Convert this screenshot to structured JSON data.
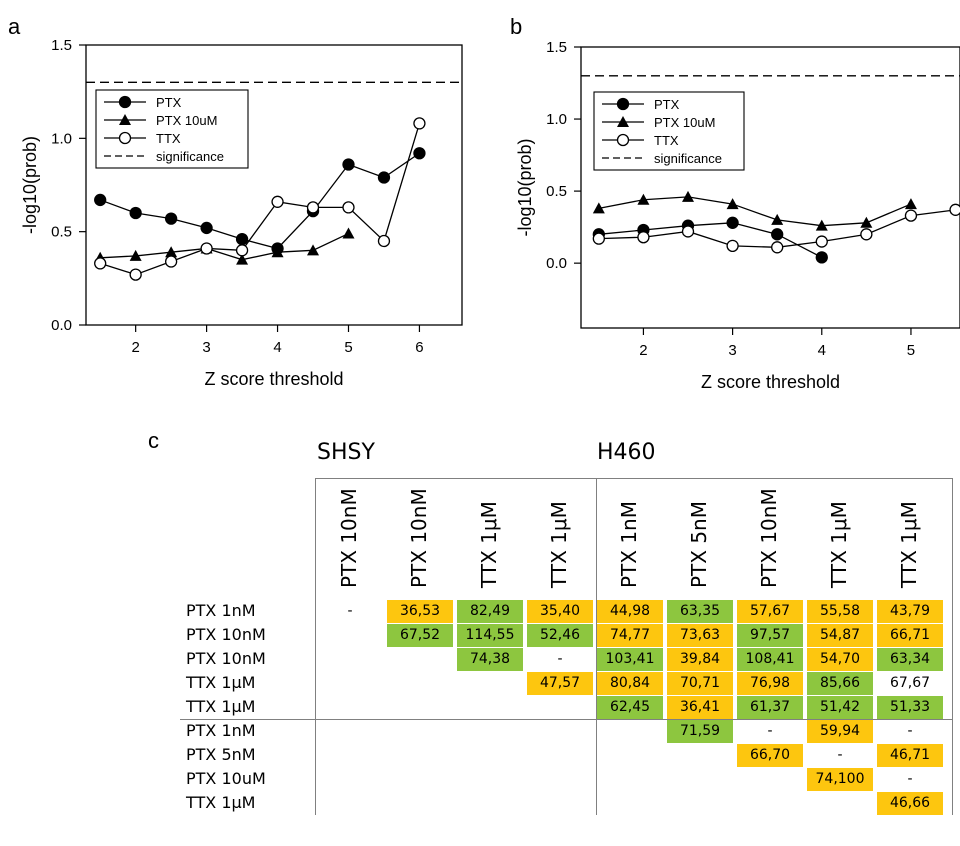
{
  "panel_labels": {
    "a": "a",
    "b": "b",
    "c": "c"
  },
  "colors": {
    "green": "#8dc63f",
    "yellow": "#fdc60f",
    "white": "#ffffff"
  },
  "chart_data": [
    {
      "type": "line",
      "panel": "a",
      "xlabel": "Z score threshold",
      "ylabel": "-log10(prob)",
      "xlim": [
        1.3,
        6.6
      ],
      "ylim": [
        0.0,
        1.5
      ],
      "xticks": [
        2,
        3,
        4,
        5,
        6
      ],
      "yticks": [
        0.0,
        0.5,
        1.0,
        1.5
      ],
      "ytick_labels": [
        "0.0",
        "0.5",
        "1.0",
        "1.5"
      ],
      "significance": 1.3,
      "legend": [
        "PTX",
        "PTX 10uM",
        "TTX",
        "significance"
      ],
      "series": [
        {
          "name": "PTX",
          "marker": "filled-circle",
          "x": [
            1.5,
            2.0,
            2.5,
            3.0,
            3.5,
            4.0,
            4.5,
            5.0,
            5.5,
            6.0
          ],
          "y": [
            0.67,
            0.6,
            0.57,
            0.52,
            0.46,
            0.41,
            0.61,
            0.86,
            0.79,
            0.92
          ]
        },
        {
          "name": "PTX 10uM",
          "marker": "filled-triangle",
          "x": [
            1.5,
            2.0,
            2.5,
            3.0,
            3.5,
            4.0,
            4.5,
            5.0
          ],
          "y": [
            0.36,
            0.37,
            0.39,
            0.41,
            0.35,
            0.39,
            0.4,
            0.49
          ]
        },
        {
          "name": "TTX",
          "marker": "open-circle",
          "x": [
            1.5,
            2.0,
            2.5,
            3.0,
            3.5,
            4.0,
            4.5,
            5.0,
            5.5,
            6.0
          ],
          "y": [
            0.33,
            0.27,
            0.34,
            0.41,
            0.4,
            0.66,
            0.63,
            0.63,
            0.45,
            1.08
          ]
        }
      ]
    },
    {
      "type": "line",
      "panel": "b",
      "xlabel": "Z score threshold",
      "ylabel": "-log10(prob)",
      "xlim": [
        1.3,
        5.55
      ],
      "ylim": [
        -0.45,
        1.5
      ],
      "xticks": [
        2,
        3,
        4,
        5
      ],
      "yticks": [
        0.0,
        0.5,
        1.0,
        1.5
      ],
      "ytick_labels": [
        "0.0",
        "0.5",
        "1.0",
        "1.5"
      ],
      "significance": 1.3,
      "legend": [
        "PTX",
        "PTX 10uM",
        "TTX",
        "significance"
      ],
      "series": [
        {
          "name": "PTX",
          "marker": "filled-circle",
          "x": [
            1.5,
            2.0,
            2.5,
            3.0,
            3.5,
            4.0
          ],
          "y": [
            0.2,
            0.23,
            0.26,
            0.28,
            0.2,
            0.04
          ]
        },
        {
          "name": "PTX 10uM",
          "marker": "filled-triangle",
          "x": [
            1.5,
            2.0,
            2.5,
            3.0,
            3.5,
            4.0,
            4.5,
            5.0
          ],
          "y": [
            0.38,
            0.44,
            0.46,
            0.41,
            0.3,
            0.26,
            0.28,
            0.41
          ]
        },
        {
          "name": "TTX",
          "marker": "open-circle",
          "x": [
            1.5,
            2.0,
            2.5,
            3.0,
            3.5,
            4.0,
            4.5,
            5.0,
            5.5
          ],
          "y": [
            0.17,
            0.18,
            0.22,
            0.12,
            0.11,
            0.15,
            0.2,
            0.33,
            0.37
          ]
        }
      ]
    },
    {
      "type": "heatmap",
      "panel": "c",
      "groups": [
        "SHSY",
        "H460"
      ],
      "columns": [
        "PTX 10nM",
        "PTX 10nM",
        "TTX 1μM",
        "TTX 1μM",
        "PTX 1nM",
        "PTX 5nM",
        "PTX 10nM",
        "TTX 1μM",
        "TTX 1μM"
      ],
      "rows": [
        {
          "label": "PTX 1nM",
          "cells": [
            {
              "v": "-",
              "c": "none"
            },
            {
              "v": "36,53",
              "c": "yellow"
            },
            {
              "v": "82,49",
              "c": "green"
            },
            {
              "v": "35,40",
              "c": "yellow"
            },
            {
              "v": "44,98",
              "c": "yellow"
            },
            {
              "v": "63,35",
              "c": "green"
            },
            {
              "v": "57,67",
              "c": "yellow"
            },
            {
              "v": "55,58",
              "c": "yellow"
            },
            {
              "v": "43,79",
              "c": "yellow"
            }
          ]
        },
        {
          "label": "PTX 10nM",
          "cells": [
            null,
            {
              "v": "67,52",
              "c": "green"
            },
            {
              "v": "114,55",
              "c": "green"
            },
            {
              "v": "52,46",
              "c": "green"
            },
            {
              "v": "74,77",
              "c": "yellow"
            },
            {
              "v": "73,63",
              "c": "yellow"
            },
            {
              "v": "97,57",
              "c": "green"
            },
            {
              "v": "54,87",
              "c": "yellow"
            },
            {
              "v": "66,71",
              "c": "yellow"
            }
          ]
        },
        {
          "label": "PTX 10nM",
          "cells": [
            null,
            null,
            {
              "v": "74,38",
              "c": "green"
            },
            {
              "v": "-",
              "c": "white"
            },
            {
              "v": "103,41",
              "c": "green"
            },
            {
              "v": "39,84",
              "c": "yellow"
            },
            {
              "v": "108,41",
              "c": "green"
            },
            {
              "v": "54,70",
              "c": "yellow"
            },
            {
              "v": "63,34",
              "c": "green"
            }
          ]
        },
        {
          "label": "TTX 1μM",
          "cells": [
            null,
            null,
            null,
            {
              "v": "47,57",
              "c": "yellow"
            },
            {
              "v": "80,84",
              "c": "yellow"
            },
            {
              "v": "70,71",
              "c": "yellow"
            },
            {
              "v": "76,98",
              "c": "yellow"
            },
            {
              "v": "85,66",
              "c": "green"
            },
            {
              "v": "67,67",
              "c": "white"
            }
          ]
        },
        {
          "label": "TTX 1μM",
          "cells": [
            null,
            null,
            null,
            null,
            {
              "v": "62,45",
              "c": "green"
            },
            {
              "v": "36,41",
              "c": "yellow"
            },
            {
              "v": "61,37",
              "c": "green"
            },
            {
              "v": "51,42",
              "c": "green"
            },
            {
              "v": "51,33",
              "c": "green"
            }
          ]
        },
        {
          "label": "PTX 1nM",
          "cells": [
            null,
            null,
            null,
            null,
            null,
            {
              "v": "71,59",
              "c": "green"
            },
            {
              "v": "-",
              "c": "white"
            },
            {
              "v": "59,94",
              "c": "yellow"
            },
            {
              "v": "-",
              "c": "white"
            }
          ]
        },
        {
          "label": "PTX 5nM",
          "cells": [
            null,
            null,
            null,
            null,
            null,
            null,
            {
              "v": "66,70",
              "c": "yellow"
            },
            {
              "v": "-",
              "c": "white"
            },
            {
              "v": "46,71",
              "c": "yellow"
            }
          ]
        },
        {
          "label": "PTX 10uM",
          "cells": [
            null,
            null,
            null,
            null,
            null,
            null,
            null,
            {
              "v": "74,100",
              "c": "yellow"
            },
            {
              "v": "-",
              "c": "white"
            }
          ]
        },
        {
          "label": "TTX 1μM",
          "cells": [
            null,
            null,
            null,
            null,
            null,
            null,
            null,
            null,
            {
              "v": "46,66",
              "c": "yellow"
            }
          ]
        }
      ]
    }
  ]
}
